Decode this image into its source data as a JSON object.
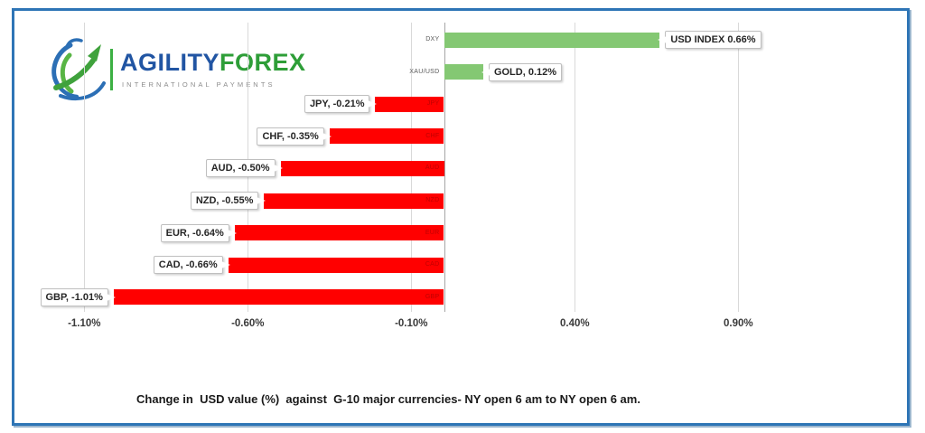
{
  "page": {
    "border_color": "#2E75B6",
    "background": "#FFFFFF"
  },
  "logo": {
    "brand_part1": "AGILITY",
    "brand_part2": "FOREX",
    "subtitle": "INTERNATIONAL PAYMENTS",
    "colors": {
      "part1_blue": "#2155A3",
      "part2_green": "#2E9E38",
      "subtitle_gray": "#8C8C8C",
      "separator_green": "#3CB043"
    }
  },
  "caption": "Change in  USD value (%)  against  G-10 major currencies- NY open 6 am to NY open 6 am.",
  "chart_data": {
    "type": "bar",
    "orientation": "horizontal",
    "title": "",
    "xlabel": "Change in USD value (%)",
    "ylabel": "",
    "categories": [
      "DXY",
      "XAU/USD",
      "JPY",
      "CHF",
      "AUD",
      "NZD",
      "EUR",
      "CAD",
      "GBP"
    ],
    "values": [
      0.66,
      0.12,
      -0.21,
      -0.35,
      -0.5,
      -0.55,
      -0.64,
      -0.66,
      -1.01
    ],
    "data_labels": [
      "USD INDEX 0.66%",
      "GOLD, 0.12%",
      "JPY, -0.21%",
      "CHF, -0.35%",
      "AUD, -0.50%",
      "NZD, -0.55%",
      "EUR, -0.64%",
      "CAD, -0.66%",
      "GBP, -1.01%"
    ],
    "x_ticks": [
      {
        "label": "-1.10%",
        "value": -1.1
      },
      {
        "label": "-0.60%",
        "value": -0.6
      },
      {
        "label": "-0.10%",
        "value": -0.1
      },
      {
        "label": "0.40%",
        "value": 0.4
      },
      {
        "label": "0.90%",
        "value": 0.9
      }
    ],
    "xlim": [
      -1.22,
      1.4
    ],
    "grid": "vertical",
    "legend": "none",
    "bar_colors": {
      "positive": "#84C873",
      "negative": "#FF0000"
    },
    "category_label_colors": {
      "positive": "#595959",
      "negative": "#C00000"
    },
    "grid_color": "#D9D9D9",
    "axis_color": "#A6A6A6"
  }
}
